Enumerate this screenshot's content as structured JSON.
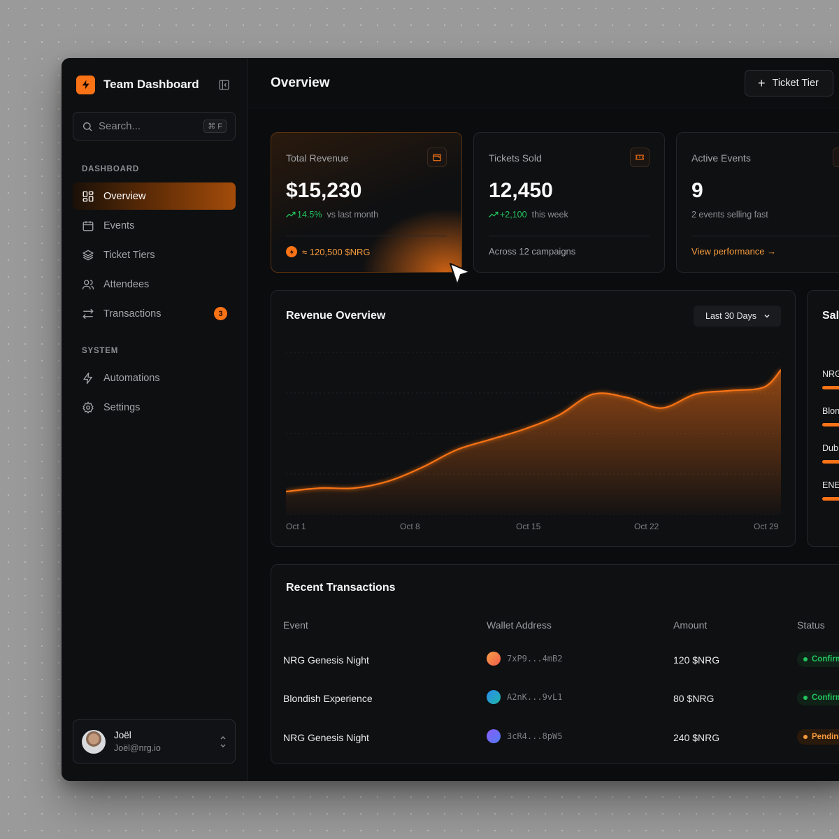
{
  "sidebar": {
    "brand": "Team Dashboard",
    "search_placeholder": "Search...",
    "search_shortcut": "⌘ F",
    "sections": [
      {
        "label": "DASHBOARD"
      },
      {
        "label": "SYSTEM"
      }
    ],
    "items": [
      {
        "label": "Overview",
        "icon": "grid-icon",
        "active": true
      },
      {
        "label": "Events",
        "icon": "calendar-icon"
      },
      {
        "label": "Ticket Tiers",
        "icon": "layers-icon"
      },
      {
        "label": "Attendees",
        "icon": "users-icon"
      },
      {
        "label": "Transactions",
        "icon": "swap-icon",
        "badge": "3"
      },
      {
        "label": "Automations",
        "icon": "bolt-icon"
      },
      {
        "label": "Settings",
        "icon": "gear-icon"
      }
    ],
    "user": {
      "name": "Joël",
      "email": "Joël@nrg.io"
    }
  },
  "header": {
    "title": "Overview",
    "action_label": "Ticket Tier"
  },
  "stats": [
    {
      "label": "Total Revenue",
      "value": "$15,230",
      "delta": "14.5%",
      "delta_text": "vs last month",
      "footer": "≈ 120,500 $NRG",
      "icon": "wallet-icon"
    },
    {
      "label": "Tickets Sold",
      "value": "12,450",
      "delta": "+2,100",
      "delta_text": "this week",
      "footer": "Across 12 campaigns",
      "icon": "ticket-icon"
    },
    {
      "label": "Active Events",
      "value": "9",
      "delta_text": "2 events selling fast",
      "footer": "View performance →"
    }
  ],
  "revenue_chart": {
    "title": "Revenue Overview",
    "range": "Last 30 Days",
    "accent": "#f97316"
  },
  "chart_data": {
    "type": "area",
    "title": "Revenue Overview",
    "x_ticks": [
      "Oct 1",
      "Oct 8",
      "Oct 15",
      "Oct 22",
      "Oct 29"
    ],
    "x": [
      1,
      3,
      5,
      7,
      9,
      11,
      13,
      15,
      17,
      19,
      21,
      23,
      25,
      27,
      29,
      30
    ],
    "values": [
      5,
      6,
      6,
      8,
      12,
      17,
      20,
      23,
      27,
      33,
      32,
      29,
      33,
      34,
      35,
      40
    ],
    "ylim": [
      0,
      45
    ],
    "grid": true
  },
  "sales_panel": {
    "title": "Sal",
    "rows": [
      "NRG",
      "Blon",
      "Dub",
      "ENE"
    ]
  },
  "transactions": {
    "title": "Recent Transactions",
    "columns": [
      "Event",
      "Wallet Address",
      "Amount",
      "Status"
    ],
    "rows": [
      {
        "event": "NRG Genesis Night",
        "wallet": "7xP9...4mB2",
        "amount": "120 $NRG",
        "status": "Confirm",
        "status_type": "confirmed",
        "avatar_color": "#f05b4a"
      },
      {
        "event": "Blondish Experience",
        "wallet": "A2nK...9vL1",
        "amount": "80 $NRG",
        "status": "Confirm",
        "status_type": "confirmed",
        "avatar_color": "#1fb5a8"
      },
      {
        "event": "NRG Genesis Night",
        "wallet": "3cR4...8pW5",
        "amount": "240 $NRG",
        "status": "Pending",
        "status_type": "pending",
        "avatar_color": "#6b6cf5"
      }
    ]
  },
  "colors": {
    "accent": "#f97316",
    "success": "#22c55e",
    "background": "#0b0c0e"
  }
}
